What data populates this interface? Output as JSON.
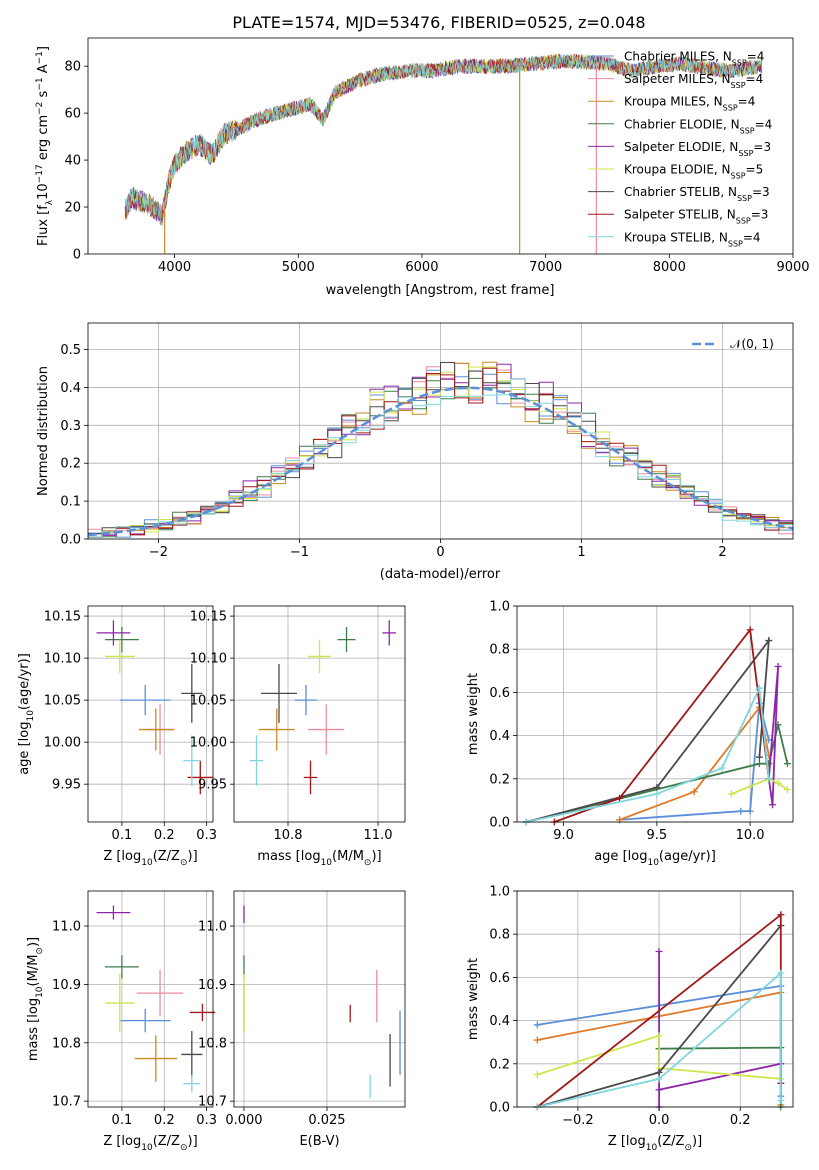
{
  "figure_title": "PLATE=1574, MJD=53476, FIBERID=0525, z=0.048",
  "colors": {
    "Chabrier MILES": "#5b8fd9",
    "Salpeter MILES": "#f08ca0",
    "Kroupa MILES": "#c98a20",
    "Chabrier ELODIE": "#3e7d4a",
    "Salpeter ELODIE": "#8e24aa",
    "Kroupa ELODIE": "#cde64a",
    "Chabrier STELIB": "#4a4a4a",
    "Salpeter STELIB": "#a01818",
    "Kroupa STELIB": "#7fd6dc",
    "orange": "#e07a2a",
    "dashed_normal": "#5b8fd9"
  },
  "chart_data": [
    {
      "id": "spectrum",
      "type": "line",
      "xlabel": "wavelength [Angstrom, rest frame]",
      "ylabel": "Flux [f",
      "ylabel_parts": [
        "Flux [f",
        "λ",
        "10",
        "−17",
        " erg cm",
        "−2",
        " s",
        "−1",
        " A",
        "−1",
        "]"
      ],
      "xlim": [
        3300,
        9000
      ],
      "ylim": [
        0,
        92
      ],
      "xticks": [
        "4000",
        "5000",
        "6000",
        "7000",
        "8000",
        "9000"
      ],
      "xtick_values": [
        4000,
        5000,
        6000,
        7000,
        8000,
        9000
      ],
      "yticks": [
        "0",
        "20",
        "40",
        "60",
        "80"
      ],
      "ytick_values": [
        0,
        20,
        40,
        60,
        80
      ],
      "legend_position": "top-right",
      "legend": [
        {
          "name": "Chabrier MILES",
          "n": "4"
        },
        {
          "name": "Salpeter MILES",
          "n": "4"
        },
        {
          "name": "Kroupa MILES",
          "n": "4"
        },
        {
          "name": "Chabrier ELODIE",
          "n": "4"
        },
        {
          "name": "Salpeter ELODIE",
          "n": "3"
        },
        {
          "name": "Kroupa ELODIE",
          "n": "5"
        },
        {
          "name": "Chabrier STELIB",
          "n": "3"
        },
        {
          "name": "Salpeter STELIB",
          "n": "3"
        },
        {
          "name": "Kroupa STELIB",
          "n": "4"
        }
      ],
      "legend_sub": "SSP",
      "continuum": {
        "x": [
          3600,
          3650,
          3800,
          3900,
          3950,
          4000,
          4100,
          4200,
          4300,
          4400,
          4500,
          4700,
          4900,
          5100,
          5200,
          5300,
          5500,
          5700,
          5900,
          6100,
          6300,
          6500,
          6700,
          6900,
          7100,
          7300,
          7500,
          7700,
          7900,
          8100,
          8300,
          8500,
          8750
        ],
        "y": [
          18,
          24,
          21,
          16,
          30,
          38,
          44,
          47,
          42,
          51,
          53,
          58,
          61,
          64,
          57,
          69,
          74,
          77,
          78,
          78,
          80,
          80,
          80,
          81,
          82,
          82,
          81,
          78,
          80,
          81,
          79,
          78,
          80
        ]
      },
      "dips": [
        {
          "x": 3920,
          "y": 0,
          "series": "Kroupa MILES"
        },
        {
          "x": 6790,
          "y": 0,
          "series": "Kroupa MILES"
        },
        {
          "x": 7410,
          "y": 0,
          "series": "Salpeter MILES"
        }
      ]
    },
    {
      "id": "residuals",
      "type": "line",
      "xlabel": "(data-model)/error",
      "ylabel": "Normed distribution",
      "xlim": [
        -2.5,
        2.5
      ],
      "ylim": [
        0,
        0.57
      ],
      "xticks": [
        "−2",
        "−1",
        "0",
        "1",
        "2"
      ],
      "xtick_values": [
        -2,
        -1,
        0,
        1,
        2
      ],
      "yticks": [
        "0.0",
        "0.1",
        "0.2",
        "0.3",
        "0.4",
        "0.5"
      ],
      "ytick_values": [
        0,
        0.1,
        0.2,
        0.3,
        0.4,
        0.5
      ],
      "legend": "𝒩(0, 1)",
      "legend_position": "top-right",
      "normal": {
        "mean": 0.2,
        "sigma": 1.0
      },
      "bin_width": 0.1
    },
    {
      "id": "age_vs_Z",
      "type": "scatter",
      "xlabel": "Z [log",
      "xlabel_parts": [
        "Z [log",
        "10",
        "(Z/Z",
        "⊙",
        ")]"
      ],
      "ylabel": "age  [log",
      "ylabel_parts": [
        "age  [log",
        "10",
        "(age/yr)]"
      ],
      "xlim": [
        0.02,
        0.315
      ],
      "ylim": [
        9.905,
        10.162
      ],
      "xticks": [
        "0.1",
        "0.2",
        "0.3"
      ],
      "xtick_values": [
        0.1,
        0.2,
        0.3
      ],
      "yticks": [
        "9.95",
        "10.00",
        "10.05",
        "10.10",
        "10.15"
      ],
      "ytick_values": [
        9.95,
        10.0,
        10.05,
        10.1,
        10.15
      ],
      "points": [
        {
          "s": "Chabrier MILES",
          "x": 0.155,
          "y": 10.05,
          "dx": 0.06,
          "dy": 0.018
        },
        {
          "s": "Salpeter MILES",
          "x": 0.19,
          "y": 10.015,
          "dx": 0.035,
          "dy": 0.03
        },
        {
          "s": "Kroupa MILES",
          "x": 0.18,
          "y": 10.015,
          "dx": 0.04,
          "dy": 0.025
        },
        {
          "s": "Chabrier ELODIE",
          "x": 0.1,
          "y": 10.122,
          "dx": 0.04,
          "dy": 0.015
        },
        {
          "s": "Salpeter ELODIE",
          "x": 0.08,
          "y": 10.13,
          "dx": 0.04,
          "dy": 0.015
        },
        {
          "s": "Kroupa ELODIE",
          "x": 0.095,
          "y": 10.102,
          "dx": 0.035,
          "dy": 0.02
        },
        {
          "s": "Chabrier STELIB",
          "x": 0.265,
          "y": 10.058,
          "dx": 0.025,
          "dy": 0.035
        },
        {
          "s": "Salpeter STELIB",
          "x": 0.285,
          "y": 9.958,
          "dx": 0.03,
          "dy": 0.02
        },
        {
          "s": "Kroupa STELIB",
          "x": 0.265,
          "y": 9.978,
          "dx": 0.02,
          "dy": 0.03
        }
      ]
    },
    {
      "id": "age_vs_mass",
      "type": "scatter",
      "xlabel": "mass [log",
      "xlabel_parts": [
        "mass [log",
        "10",
        "(M/M",
        "⊙",
        ")]"
      ],
      "ylabel": "",
      "xlim": [
        10.68,
        11.06
      ],
      "ylim": [
        9.905,
        10.162
      ],
      "xticks": [
        "10.8",
        "11.0"
      ],
      "xtick_values": [
        10.8,
        11.0
      ],
      "yticks": [
        "9.95",
        "10.00",
        "10.05",
        "10.10",
        "10.15"
      ],
      "ytick_values": [
        9.95,
        10.0,
        10.05,
        10.1,
        10.15
      ],
      "points": [
        {
          "s": "Chabrier MILES",
          "x": 10.84,
          "y": 10.05,
          "dx": 0.025,
          "dy": 0.018
        },
        {
          "s": "Salpeter MILES",
          "x": 10.885,
          "y": 10.015,
          "dx": 0.04,
          "dy": 0.03
        },
        {
          "s": "Kroupa MILES",
          "x": 10.775,
          "y": 10.015,
          "dx": 0.04,
          "dy": 0.025
        },
        {
          "s": "Chabrier ELODIE",
          "x": 10.93,
          "y": 10.122,
          "dx": 0.02,
          "dy": 0.015
        },
        {
          "s": "Salpeter ELODIE",
          "x": 11.025,
          "y": 10.13,
          "dx": 0.015,
          "dy": 0.015
        },
        {
          "s": "Kroupa ELODIE",
          "x": 10.87,
          "y": 10.102,
          "dx": 0.025,
          "dy": 0.02
        },
        {
          "s": "Chabrier STELIB",
          "x": 10.78,
          "y": 10.058,
          "dx": 0.04,
          "dy": 0.035
        },
        {
          "s": "Salpeter STELIB",
          "x": 10.85,
          "y": 9.958,
          "dx": 0.015,
          "dy": 0.02
        },
        {
          "s": "Kroupa STELIB",
          "x": 10.73,
          "y": 9.978,
          "dx": 0.015,
          "dy": 0.03
        }
      ]
    },
    {
      "id": "weight_vs_age",
      "type": "line",
      "xlabel": "age  [log",
      "xlabel_parts": [
        "age  [log",
        "10",
        "(age/yr)]"
      ],
      "ylabel": "mass weight",
      "xlim": [
        8.75,
        10.23
      ],
      "ylim": [
        0,
        1.0
      ],
      "xticks": [
        "9.0",
        "9.5",
        "10.0"
      ],
      "xtick_values": [
        9.0,
        9.5,
        10.0
      ],
      "yticks": [
        "0.0",
        "0.2",
        "0.4",
        "0.6",
        "0.8",
        "1.0"
      ],
      "ytick_values": [
        0,
        0.2,
        0.4,
        0.6,
        0.8,
        1.0
      ],
      "series": [
        {
          "s": "Chabrier MILES",
          "x": [
            9.3,
            9.95,
            10.0,
            10.05,
            10.1
          ],
          "y": [
            0.01,
            0.05,
            0.05,
            0.55,
            0.38
          ]
        },
        {
          "s": "orange",
          "x": [
            9.3,
            9.7,
            10.05,
            10.1
          ],
          "y": [
            0.01,
            0.14,
            0.53,
            0.31
          ]
        },
        {
          "s": "Chabrier ELODIE",
          "x": [
            8.8,
            10.05,
            10.1,
            10.15,
            10.2
          ],
          "y": [
            0.0,
            0.27,
            0.27,
            0.45,
            0.27
          ]
        },
        {
          "s": "Salpeter ELODIE",
          "x": [
            10.1,
            10.15,
            10.12,
            10.1
          ],
          "y": [
            0.2,
            0.72,
            0.08,
            0.2
          ]
        },
        {
          "s": "Kroupa ELODIE",
          "x": [
            9.9,
            10.1,
            10.15,
            10.2
          ],
          "y": [
            0.13,
            0.2,
            0.18,
            0.15
          ]
        },
        {
          "s": "Chabrier STELIB",
          "x": [
            8.8,
            9.5,
            10.1,
            10.05
          ],
          "y": [
            0.0,
            0.16,
            0.84,
            0.3
          ]
        },
        {
          "s": "Salpeter STELIB",
          "x": [
            8.95,
            9.3,
            10.0,
            10.1
          ],
          "y": [
            0.0,
            0.11,
            0.89,
            0.2
          ]
        },
        {
          "s": "Kroupa STELIB",
          "x": [
            8.8,
            9.5,
            9.85,
            10.05,
            10.1
          ],
          "y": [
            0.0,
            0.13,
            0.25,
            0.62,
            0.2
          ]
        }
      ]
    },
    {
      "id": "mass_vs_Z",
      "type": "scatter",
      "xlabel": "Z [log",
      "xlabel_parts": [
        "Z [log",
        "10",
        "(Z/Z",
        "⊙",
        ")]"
      ],
      "ylabel": "mass [log",
      "ylabel_parts": [
        "mass [log",
        "10",
        "(M/M",
        "⊙",
        ")]"
      ],
      "xlim": [
        0.02,
        0.315
      ],
      "ylim": [
        10.69,
        11.06
      ],
      "xticks": [
        "0.1",
        "0.2",
        "0.3"
      ],
      "xtick_values": [
        0.1,
        0.2,
        0.3
      ],
      "yticks": [
        "10.7",
        "10.8",
        "10.9",
        "11.0"
      ],
      "ytick_values": [
        10.7,
        10.8,
        10.9,
        11.0
      ],
      "points": [
        {
          "s": "Chabrier MILES",
          "x": 0.155,
          "y": 10.838,
          "dx": 0.06,
          "dy": 0.02
        },
        {
          "s": "Salpeter MILES",
          "x": 0.19,
          "y": 10.885,
          "dx": 0.055,
          "dy": 0.04
        },
        {
          "s": "Kroupa MILES",
          "x": 0.18,
          "y": 10.773,
          "dx": 0.05,
          "dy": 0.04
        },
        {
          "s": "Chabrier ELODIE",
          "x": 0.1,
          "y": 10.93,
          "dx": 0.04,
          "dy": 0.02
        },
        {
          "s": "Salpeter ELODIE",
          "x": 0.08,
          "y": 11.023,
          "dx": 0.04,
          "dy": 0.012
        },
        {
          "s": "Kroupa ELODIE",
          "x": 0.095,
          "y": 10.868,
          "dx": 0.035,
          "dy": 0.05
        },
        {
          "s": "Chabrier STELIB",
          "x": 0.265,
          "y": 10.78,
          "dx": 0.025,
          "dy": 0.04
        },
        {
          "s": "Salpeter STELIB",
          "x": 0.29,
          "y": 10.852,
          "dx": 0.03,
          "dy": 0.015
        },
        {
          "s": "Kroupa STELIB",
          "x": 0.265,
          "y": 10.73,
          "dx": 0.02,
          "dy": 0.015
        }
      ]
    },
    {
      "id": "mass_vs_ebv",
      "type": "scatter",
      "xlabel": "E(B-V)",
      "ylabel": "",
      "xlim": [
        -0.003,
        0.0485
      ],
      "ylim": [
        10.69,
        11.06
      ],
      "xticks": [
        "0.000",
        "0.025"
      ],
      "xtick_values": [
        0.0,
        0.025
      ],
      "yticks": [
        "10.7",
        "10.8",
        "10.9",
        "11.0"
      ],
      "ytick_values": [
        10.7,
        10.8,
        10.9,
        11.0
      ],
      "points": [
        {
          "s": "Chabrier MILES",
          "x": 0.047,
          "y": 10.8,
          "dx": 0,
          "dy": 0.055
        },
        {
          "s": "Salpeter MILES",
          "x": 0.04,
          "y": 10.88,
          "dx": 0,
          "dy": 0.045
        },
        {
          "s": "Kroupa MILES",
          "x": 0.0,
          "y": 10.86,
          "dx": 0,
          "dy": 0.04
        },
        {
          "s": "Chabrier ELODIE",
          "x": 0.0,
          "y": 10.93,
          "dx": 0,
          "dy": 0.02
        },
        {
          "s": "Salpeter ELODIE",
          "x": 0.0,
          "y": 11.02,
          "dx": 0,
          "dy": 0.015
        },
        {
          "s": "Kroupa ELODIE",
          "x": 0.0,
          "y": 10.868,
          "dx": 0,
          "dy": 0.05
        },
        {
          "s": "Chabrier STELIB",
          "x": 0.044,
          "y": 10.77,
          "dx": 0,
          "dy": 0.045
        },
        {
          "s": "Salpeter STELIB",
          "x": 0.032,
          "y": 10.85,
          "dx": 0,
          "dy": 0.015
        },
        {
          "s": "Kroupa STELIB",
          "x": 0.038,
          "y": 10.725,
          "dx": 0,
          "dy": 0.02
        }
      ]
    },
    {
      "id": "weight_vs_Z",
      "type": "line",
      "xlabel": "Z [log",
      "xlabel_parts": [
        "Z [log",
        "10",
        "(Z/Z",
        "⊙",
        ")]"
      ],
      "ylabel": "mass weight",
      "xlim": [
        -0.35,
        0.33
      ],
      "ylim": [
        0,
        1.0
      ],
      "xticks": [
        "−0.2",
        "0.0",
        "0.2"
      ],
      "xtick_values": [
        -0.2,
        0.0,
        0.2
      ],
      "yticks": [
        "0.0",
        "0.2",
        "0.4",
        "0.6",
        "0.8",
        "1.0"
      ],
      "ytick_values": [
        0,
        0.2,
        0.4,
        0.6,
        0.8,
        1.0
      ],
      "series": [
        {
          "s": "Chabrier MILES",
          "x": [
            -0.3,
            0.3,
            0.3
          ],
          "y": [
            0.38,
            0.56,
            0.05
          ]
        },
        {
          "s": "orange",
          "x": [
            -0.3,
            0.3,
            0.3
          ],
          "y": [
            0.31,
            0.53,
            0.01
          ]
        },
        {
          "s": "Chabrier ELODIE",
          "x": [
            0.0,
            0.3,
            0.3
          ],
          "y": [
            0.27,
            0.275,
            0.0
          ]
        },
        {
          "s": "Salpeter ELODIE",
          "x": [
            0.0,
            0.0,
            0.0,
            0.3
          ],
          "y": [
            0.72,
            0.0,
            0.08,
            0.2
          ]
        },
        {
          "s": "Kroupa ELODIE",
          "x": [
            -0.3,
            0.0,
            0.0,
            0.3
          ],
          "y": [
            0.15,
            0.33,
            0.18,
            0.13
          ]
        },
        {
          "s": "Chabrier STELIB",
          "x": [
            -0.3,
            0.0,
            0.3
          ],
          "y": [
            0.0,
            0.16,
            0.84
          ]
        },
        {
          "s": "Salpeter STELIB",
          "x": [
            -0.3,
            0.3,
            0.3
          ],
          "y": [
            0.0,
            0.89,
            0.11
          ]
        },
        {
          "s": "Kroupa STELIB",
          "x": [
            -0.3,
            0.0,
            0.3,
            0.3
          ],
          "y": [
            0.0,
            0.13,
            0.62,
            0.03
          ]
        }
      ]
    }
  ]
}
